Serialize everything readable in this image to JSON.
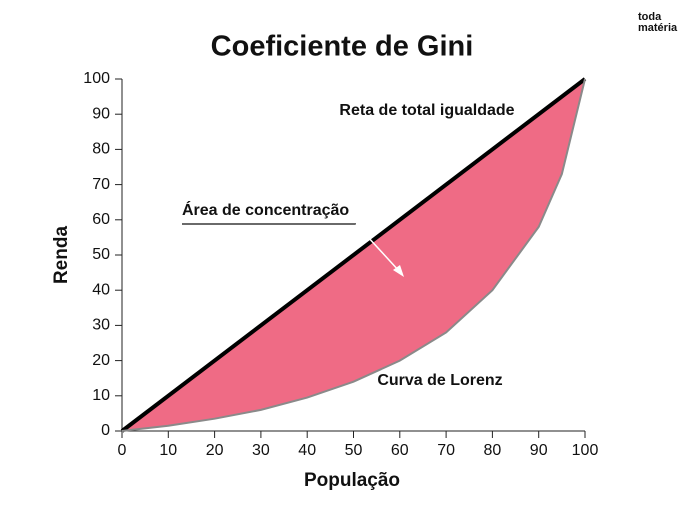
{
  "brand": [
    "toda",
    "matéria"
  ],
  "chart_data": {
    "type": "line",
    "title": "Coeficiente de Gini",
    "x_label": "População",
    "y_label": "Renda",
    "xlim": [
      0,
      100
    ],
    "ylim": [
      0,
      100
    ],
    "xticks": [
      0,
      10,
      20,
      30,
      40,
      50,
      60,
      70,
      80,
      90,
      100
    ],
    "yticks": [
      0,
      10,
      20,
      30,
      40,
      50,
      60,
      70,
      80,
      90,
      100
    ],
    "fill_color": "#ef6b85",
    "series": [
      {
        "name": "Reta de total igualdade",
        "color": "#000000",
        "x": [
          0,
          100
        ],
        "values": [
          0,
          100
        ]
      },
      {
        "name": "Curva de Lorenz",
        "color": "#8a8a8a",
        "x": [
          0,
          10,
          20,
          30,
          40,
          50,
          60,
          70,
          80,
          90,
          95,
          100
        ],
        "values": [
          0,
          1.5,
          3.5,
          6,
          9.5,
          14,
          20,
          28,
          40,
          58,
          73,
          100
        ]
      }
    ],
    "annotations": [
      "Área de concentração"
    ]
  }
}
